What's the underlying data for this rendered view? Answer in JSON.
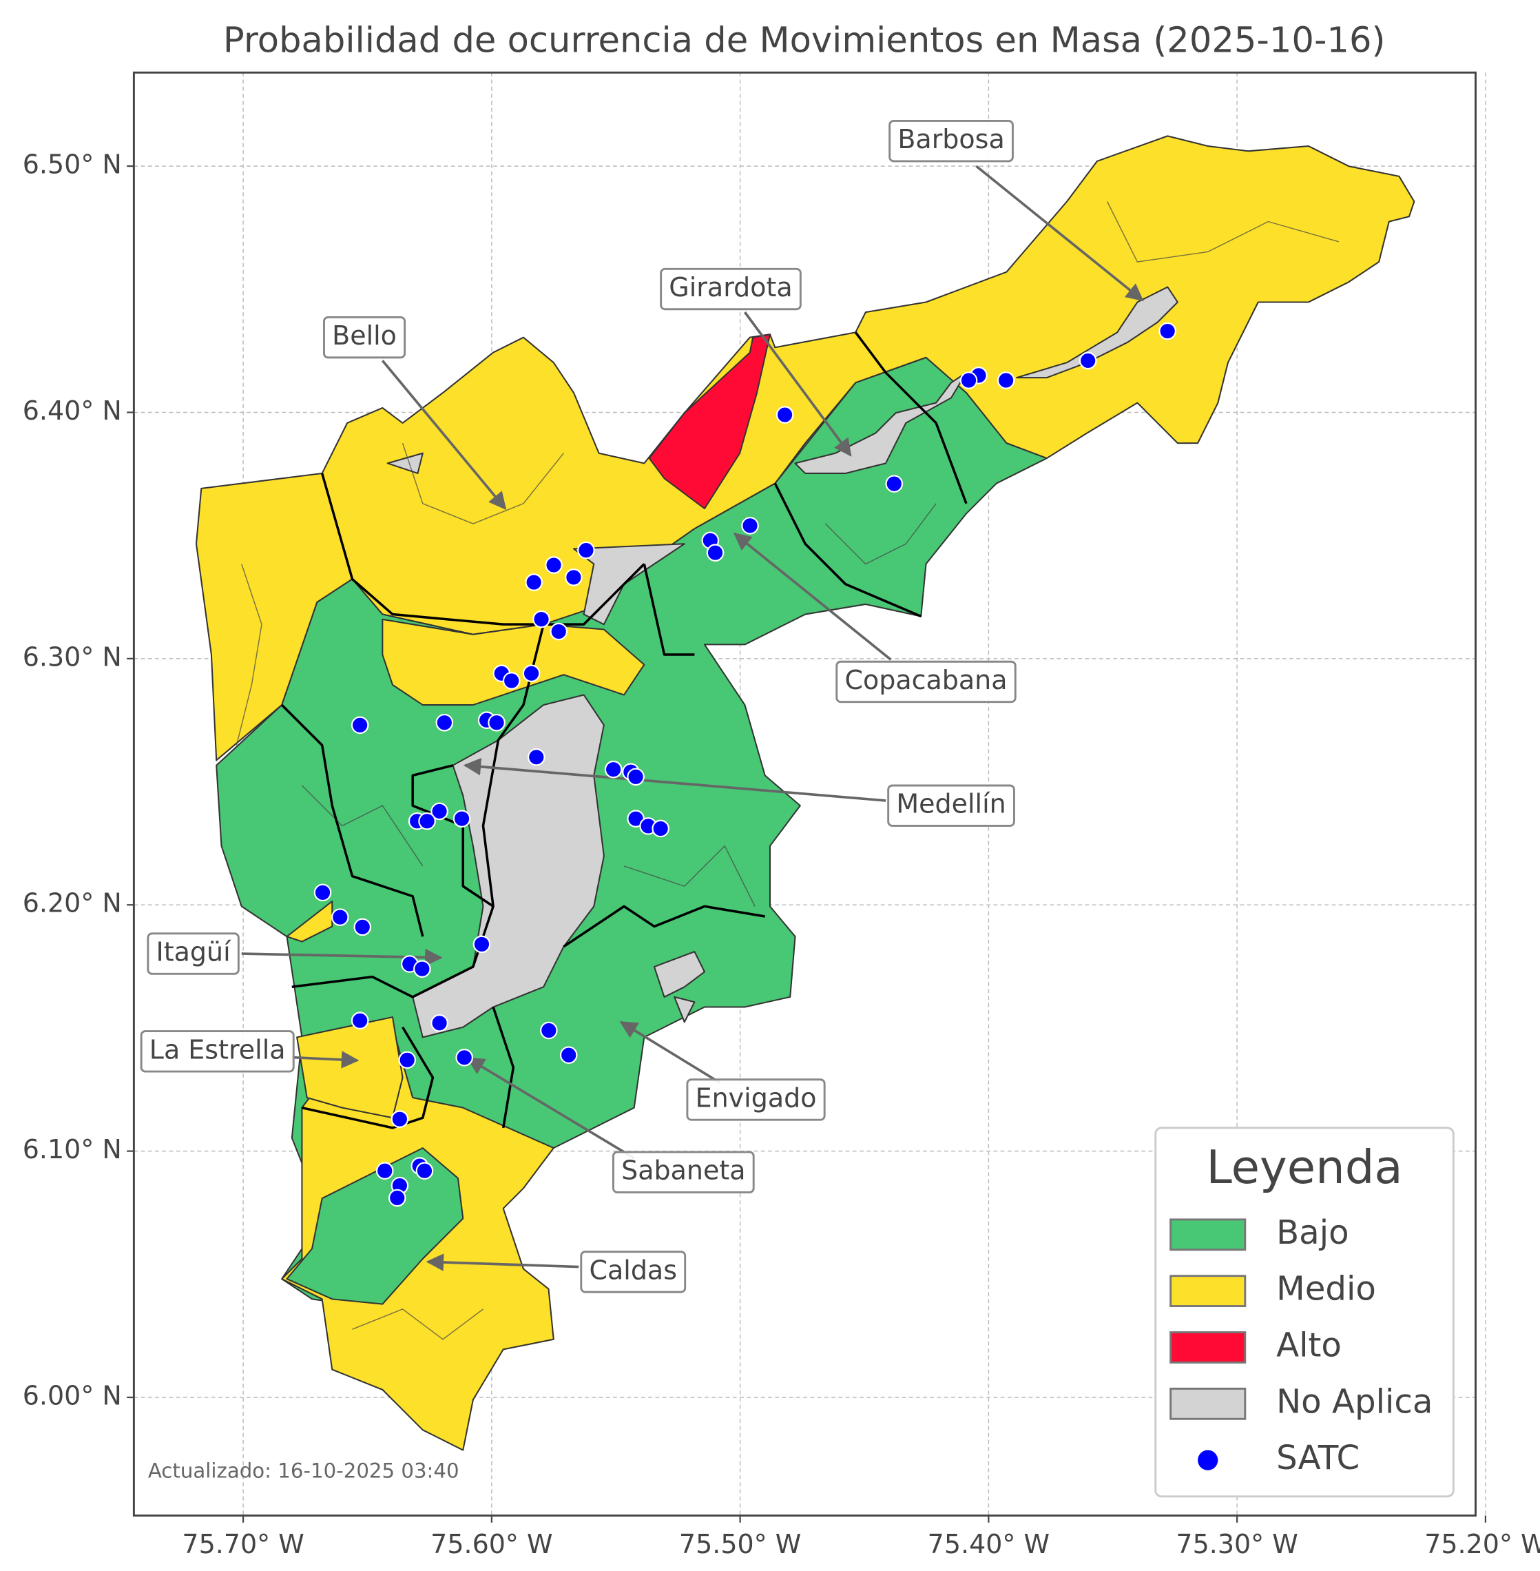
{
  "chart_data": {
    "type": "map",
    "title": "Probabilidad de ocurrencia de Movimientos en Masa (2025-10-16)",
    "xlim": [
      -75.744,
      -75.204
    ],
    "ylim": [
      5.952,
      6.538
    ],
    "xticks": [
      {
        "value": -75.7,
        "label": "75.70° W"
      },
      {
        "value": -75.6,
        "label": "75.60° W"
      },
      {
        "value": -75.5,
        "label": "75.50° W"
      },
      {
        "value": -75.4,
        "label": "75.40° W"
      },
      {
        "value": -75.3,
        "label": "75.30° W"
      },
      {
        "value": -75.2,
        "label": "75.20° W"
      }
    ],
    "yticks": [
      {
        "value": 6.0,
        "label": "6.00° N"
      },
      {
        "value": 6.1,
        "label": "6.10° N"
      },
      {
        "value": 6.2,
        "label": "6.20° N"
      },
      {
        "value": 6.3,
        "label": "6.30° N"
      },
      {
        "value": 6.4,
        "label": "6.40° N"
      },
      {
        "value": 6.5,
        "label": "6.50° N"
      }
    ],
    "grid": true,
    "classes": [
      {
        "name": "Bajo",
        "color": "#48c774"
      },
      {
        "name": "Medio",
        "color": "#fce02a"
      },
      {
        "name": "Alto",
        "color": "#ff0a35"
      },
      {
        "name": "No Aplica",
        "color": "#d3d3d3"
      }
    ],
    "points": {
      "name": "SATC",
      "color": "#0000ff",
      "x": [
        -75.328,
        -75.36,
        -75.393,
        -75.404,
        -75.408,
        -75.482,
        -75.438,
        -75.496,
        -75.512,
        -75.51,
        -75.562,
        -75.575,
        -75.567,
        -75.583,
        -75.58,
        -75.573,
        -75.596,
        -75.592,
        -75.584,
        -75.653,
        -75.619,
        -75.602,
        -75.598,
        -75.582,
        -75.551,
        -75.544,
        -75.542,
        -75.542,
        -75.537,
        -75.532,
        -75.621,
        -75.612,
        -75.63,
        -75.626,
        -75.668,
        -75.661,
        -75.652,
        -75.604,
        -75.633,
        -75.628,
        -75.621,
        -75.653,
        -75.577,
        -75.569,
        -75.611,
        -75.634,
        -75.637,
        -75.643,
        -75.629,
        -75.627,
        -75.637,
        -75.638
      ],
      "y": [
        6.433,
        6.421,
        6.413,
        6.415,
        6.413,
        6.399,
        6.371,
        6.354,
        6.348,
        6.343,
        6.344,
        6.338,
        6.333,
        6.331,
        6.316,
        6.311,
        6.294,
        6.291,
        6.294,
        6.273,
        6.274,
        6.275,
        6.274,
        6.26,
        6.255,
        6.254,
        6.252,
        6.235,
        6.232,
        6.231,
        6.238,
        6.235,
        6.234,
        6.234,
        6.205,
        6.195,
        6.191,
        6.184,
        6.176,
        6.174,
        6.152,
        6.153,
        6.149,
        6.139,
        6.138,
        6.137,
        6.113,
        6.092,
        6.094,
        6.092,
        6.086,
        6.081
      ]
    },
    "annotations": [
      "Barbosa",
      "Girardota",
      "Bello",
      "Copacabana",
      "Medellín",
      "Itagüí",
      "La Estrella",
      "Envigado",
      "Sabaneta",
      "Caldas"
    ],
    "legend": {
      "title": "Leyenda",
      "position": "lower right"
    },
    "footer": "Actualizado: 16-10-2025 03:40"
  }
}
